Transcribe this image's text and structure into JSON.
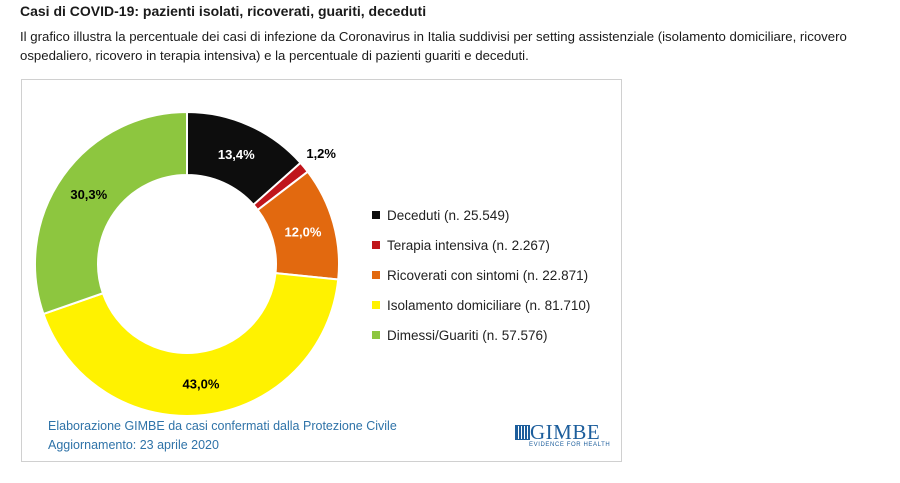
{
  "header": {
    "title": "Casi di COVID-19: pazienti isolati, ricoverati, guariti, deceduti",
    "description": "Il grafico illustra la percentuale dei casi di infezione da Coronavirus in Italia suddivisi per setting assistenziale (isolamento domiciliare, ricovero ospedaliero, ricovero in terapia intensiva) e la percentuale di pazienti guariti e deceduti."
  },
  "chart_data": {
    "type": "pie",
    "variant": "donut",
    "series": [
      {
        "name": "Deceduti (n. 25.549)",
        "value": 13.4,
        "label": "13,4%",
        "color": "#0d0d0d",
        "label_color": "#ffffff"
      },
      {
        "name": "Terapia intensiva (n. 2.267)",
        "value": 1.2,
        "label": "1,2%",
        "color": "#c0161c",
        "label_color": "#000000"
      },
      {
        "name": "Ricoverati con sintomi (n. 22.871)",
        "value": 12.0,
        "label": "12,0%",
        "color": "#e2690f",
        "label_color": "#ffffff"
      },
      {
        "name": "Isolamento domiciliare (n. 81.710)",
        "value": 43.0,
        "label": "43,0%",
        "color": "#fff200",
        "label_color": "#000000"
      },
      {
        "name": "Dimessi/Guariti (n. 57.576)",
        "value": 30.3,
        "label": "30,3%",
        "color": "#8dc63f",
        "label_color": "#000000"
      }
    ],
    "legend_position": "right",
    "start": "top, clockwise"
  },
  "credits": {
    "line1": "Elaborazione GIMBE da casi confermati dalla Protezione Civile",
    "line2": "Aggiornamento: 23 aprile 2020"
  },
  "logo": {
    "name": "GIMBE",
    "tagline": "EVIDENCE FOR HEALTH"
  }
}
